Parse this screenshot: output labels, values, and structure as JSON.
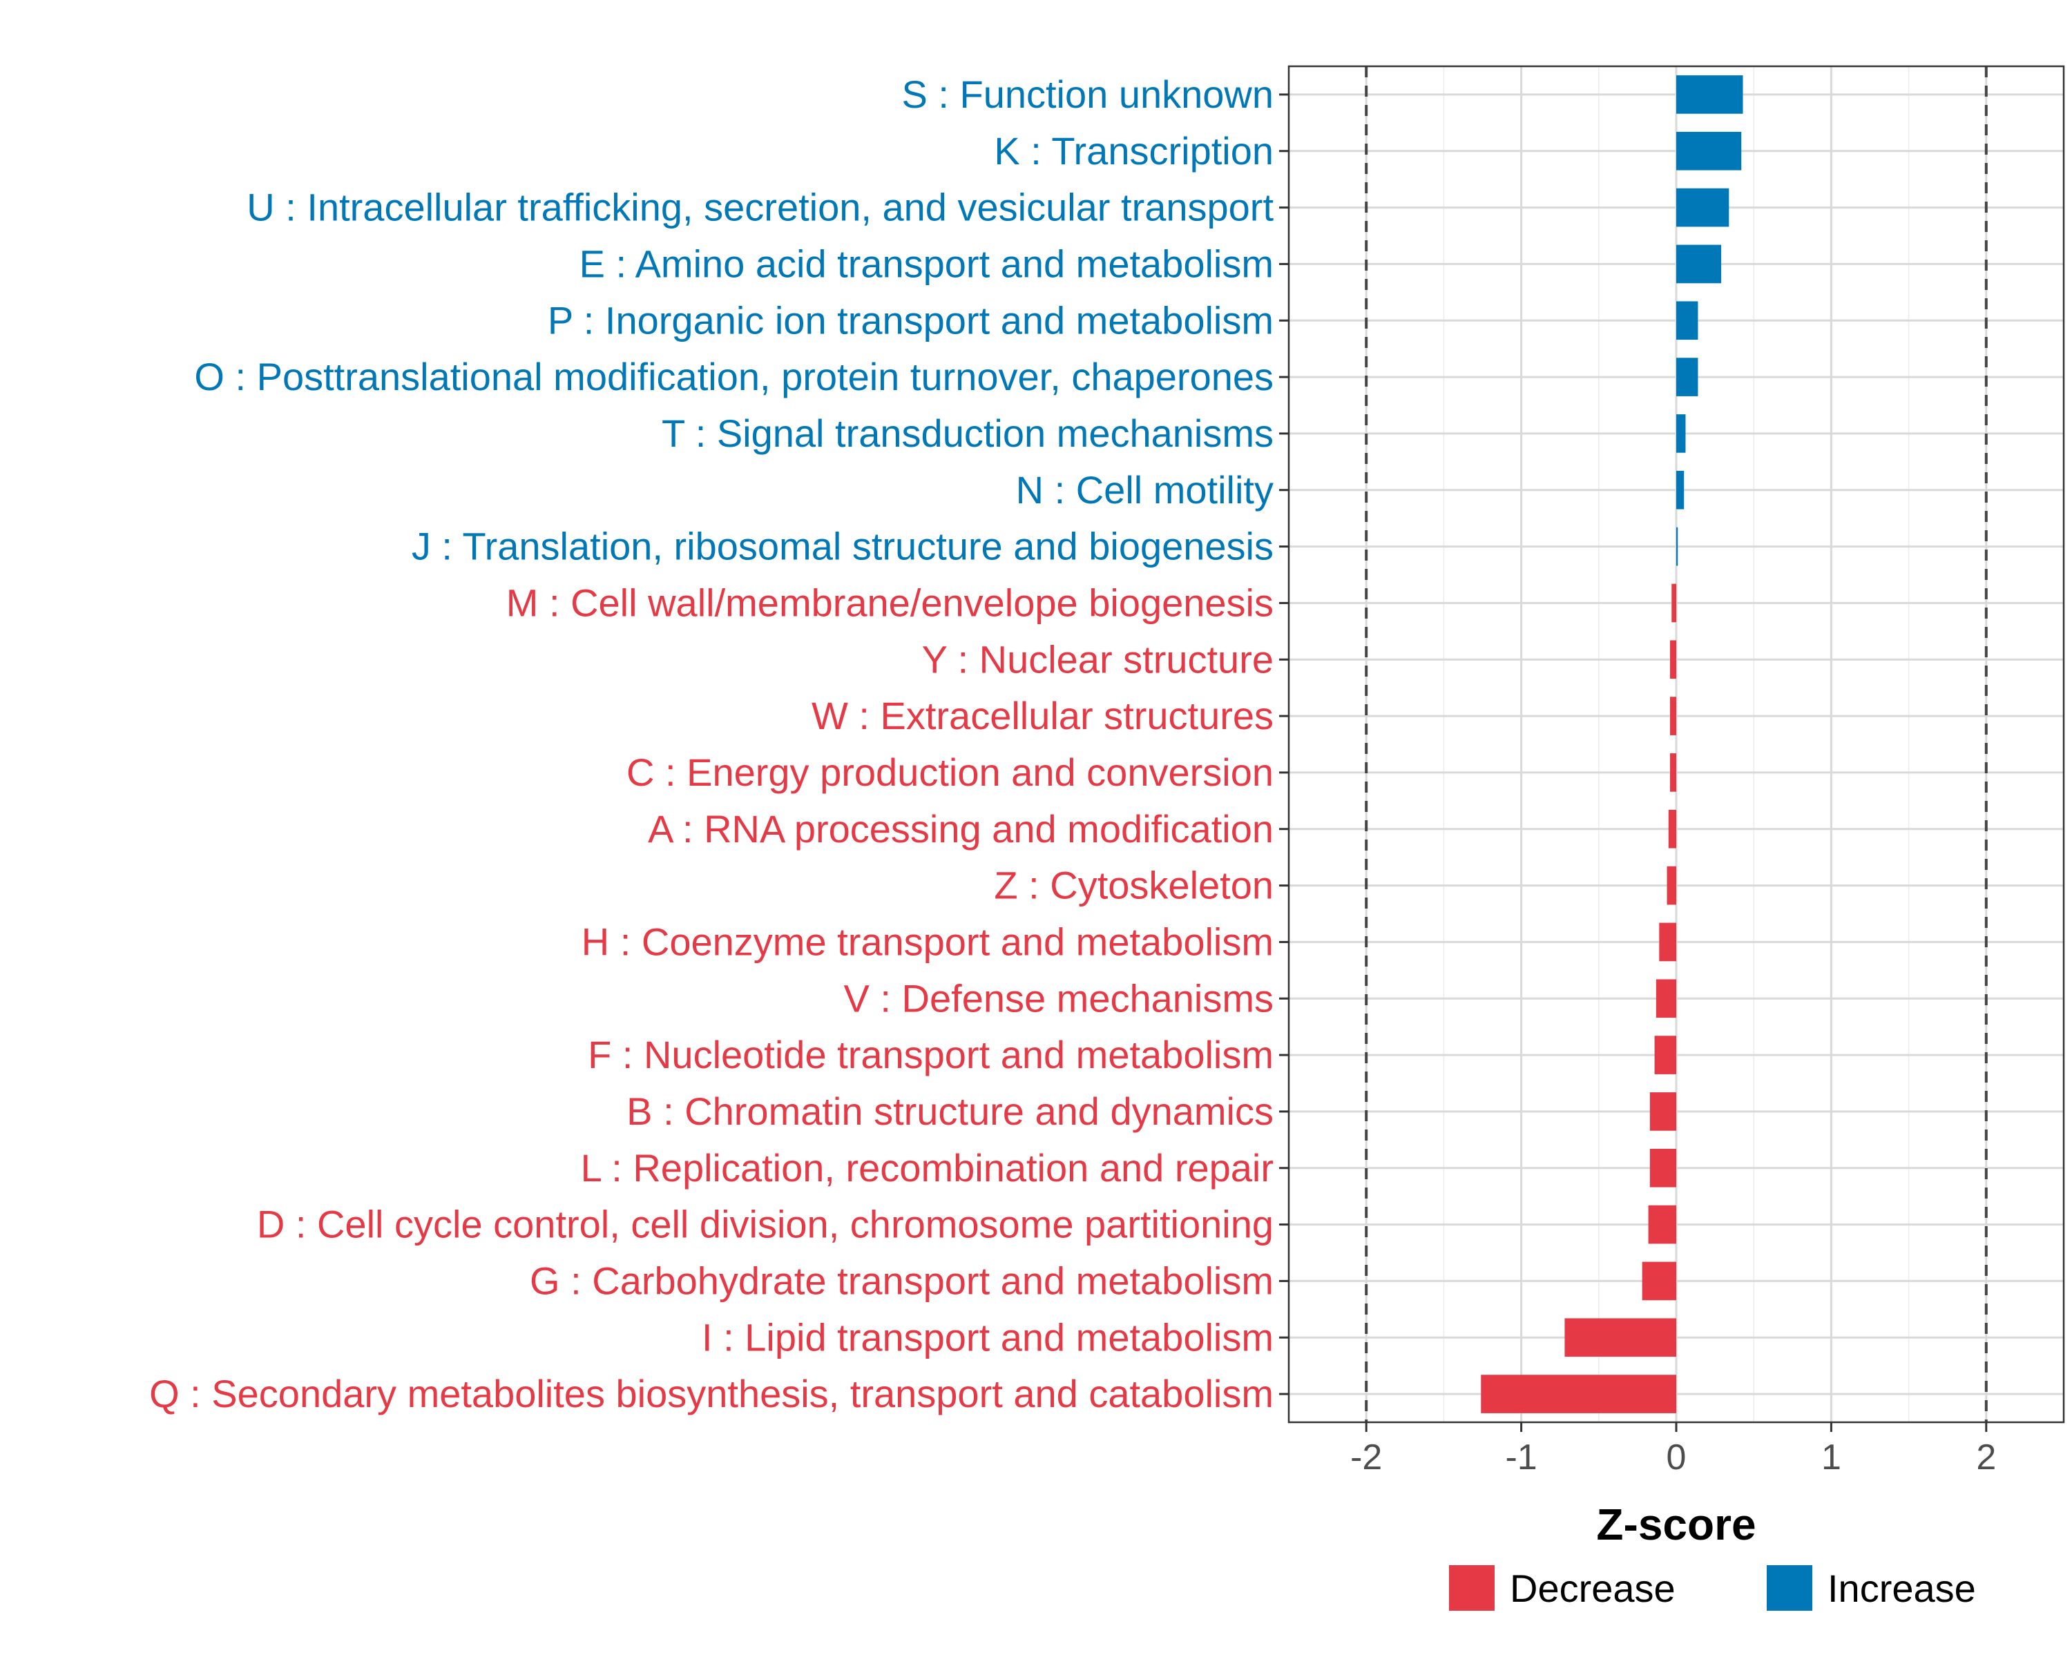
{
  "chart_data": {
    "type": "bar",
    "orientation": "horizontal",
    "title": "",
    "xlabel": "Z-score",
    "ylabel": "",
    "xlim": [
      -2.5,
      2.5
    ],
    "x_ticks": [
      -2,
      -1,
      0,
      1,
      2
    ],
    "x_tick_labels": [
      "-2",
      "-1",
      "0",
      "1",
      "2"
    ],
    "reference_lines": [
      -2,
      2
    ],
    "grid": true,
    "colors": {
      "Decrease": "#e63946",
      "Increase": "#0077b6"
    },
    "categories": [
      "S : Function unknown",
      "K : Transcription",
      "U : Intracellular trafficking, secretion, and vesicular transport",
      "E : Amino acid transport and metabolism",
      "P : Inorganic ion transport and metabolism",
      "O : Posttranslational modification, protein turnover, chaperones",
      "T : Signal transduction mechanisms",
      "N : Cell motility",
      "J : Translation, ribosomal structure and biogenesis",
      "M : Cell wall/membrane/envelope biogenesis",
      "Y : Nuclear structure",
      "W : Extracellular structures",
      "C : Energy production and conversion",
      "A : RNA processing and modification",
      "Z : Cytoskeleton",
      "H : Coenzyme transport and metabolism",
      "V : Defense mechanisms",
      "F : Nucleotide transport and metabolism",
      "B : Chromatin structure and dynamics",
      "L : Replication, recombination and repair",
      "D : Cell cycle control, cell division, chromosome partitioning",
      "G : Carbohydrate transport and metabolism",
      "I : Lipid transport and metabolism",
      "Q : Secondary metabolites biosynthesis, transport and catabolism"
    ],
    "values": [
      0.43,
      0.42,
      0.34,
      0.29,
      0.14,
      0.14,
      0.06,
      0.05,
      0.01,
      -0.03,
      -0.04,
      -0.04,
      -0.04,
      -0.05,
      -0.06,
      -0.11,
      -0.13,
      -0.14,
      -0.17,
      -0.17,
      -0.18,
      -0.22,
      -0.72,
      -1.26
    ],
    "groups": [
      "Increase",
      "Increase",
      "Increase",
      "Increase",
      "Increase",
      "Increase",
      "Increase",
      "Increase",
      "Increase",
      "Decrease",
      "Decrease",
      "Decrease",
      "Decrease",
      "Decrease",
      "Decrease",
      "Decrease",
      "Decrease",
      "Decrease",
      "Decrease",
      "Decrease",
      "Decrease",
      "Decrease",
      "Decrease",
      "Decrease"
    ],
    "legend": {
      "position": "bottom",
      "entries": [
        "Decrease",
        "Increase"
      ]
    }
  }
}
